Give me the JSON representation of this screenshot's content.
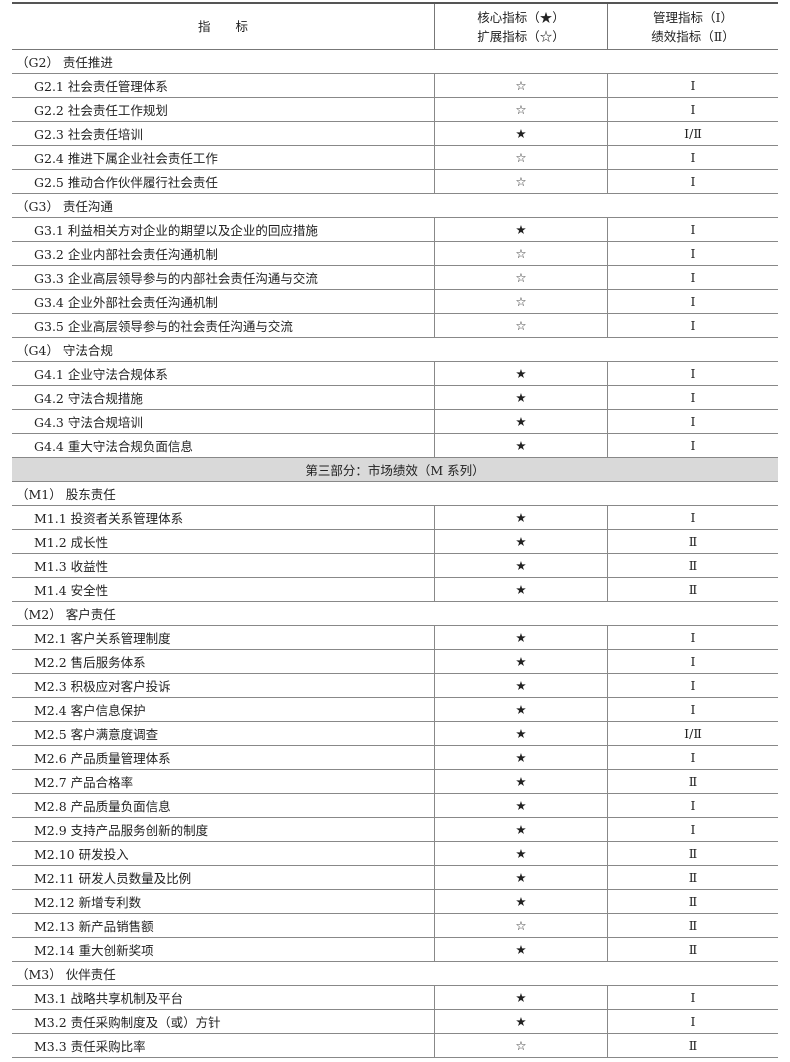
{
  "header": {
    "indicator": "指　　标",
    "core_line1": "核心指标（★）",
    "core_line2": "扩展指标（☆）",
    "type_line1": "管理指标（Ⅰ）",
    "type_line2": "绩效指标（Ⅱ）"
  },
  "rows": [
    {
      "kind": "group",
      "label": "（G2） 责任推进"
    },
    {
      "kind": "item",
      "label": "G2.1 社会责任管理体系",
      "core": "☆",
      "type": "Ⅰ"
    },
    {
      "kind": "item",
      "label": "G2.2 社会责任工作规划",
      "core": "☆",
      "type": "Ⅰ"
    },
    {
      "kind": "item",
      "label": "G2.3 社会责任培训",
      "core": "★",
      "type": "Ⅰ/Ⅱ"
    },
    {
      "kind": "item",
      "label": "G2.4 推进下属企业社会责任工作",
      "core": "☆",
      "type": "Ⅰ"
    },
    {
      "kind": "item",
      "label": "G2.5 推动合作伙伴履行社会责任",
      "core": "☆",
      "type": "Ⅰ"
    },
    {
      "kind": "group",
      "label": "（G3） 责任沟通"
    },
    {
      "kind": "item",
      "label": "G3.1 利益相关方对企业的期望以及企业的回应措施",
      "core": "★",
      "type": "Ⅰ"
    },
    {
      "kind": "item",
      "label": "G3.2 企业内部社会责任沟通机制",
      "core": "☆",
      "type": "Ⅰ"
    },
    {
      "kind": "item",
      "label": "G3.3 企业高层领导参与的内部社会责任沟通与交流",
      "core": "☆",
      "type": "Ⅰ"
    },
    {
      "kind": "item",
      "label": "G3.4 企业外部社会责任沟通机制",
      "core": "☆",
      "type": "Ⅰ"
    },
    {
      "kind": "item",
      "label": "G3.5 企业高层领导参与的社会责任沟通与交流",
      "core": "☆",
      "type": "Ⅰ"
    },
    {
      "kind": "group",
      "label": "（G4） 守法合规"
    },
    {
      "kind": "item",
      "label": "G4.1 企业守法合规体系",
      "core": "★",
      "type": "Ⅰ"
    },
    {
      "kind": "item",
      "label": "G4.2 守法合规措施",
      "core": "★",
      "type": "Ⅰ"
    },
    {
      "kind": "item",
      "label": "G4.3 守法合规培训",
      "core": "★",
      "type": "Ⅰ"
    },
    {
      "kind": "item",
      "label": "G4.4 重大守法合规负面信息",
      "core": "★",
      "type": "Ⅰ"
    },
    {
      "kind": "section",
      "label": "第三部分：市场绩效（M 系列）"
    },
    {
      "kind": "group",
      "label": "（M1） 股东责任"
    },
    {
      "kind": "item",
      "label": "M1.1 投资者关系管理体系",
      "core": "★",
      "type": "Ⅰ"
    },
    {
      "kind": "item",
      "label": "M1.2 成长性",
      "core": "★",
      "type": "Ⅱ"
    },
    {
      "kind": "item",
      "label": "M1.3 收益性",
      "core": "★",
      "type": "Ⅱ"
    },
    {
      "kind": "item",
      "label": "M1.4 安全性",
      "core": "★",
      "type": "Ⅱ"
    },
    {
      "kind": "group",
      "label": "（M2） 客户责任"
    },
    {
      "kind": "item",
      "label": "M2.1 客户关系管理制度",
      "core": "★",
      "type": "Ⅰ"
    },
    {
      "kind": "item",
      "label": "M2.2 售后服务体系",
      "core": "★",
      "type": "Ⅰ"
    },
    {
      "kind": "item",
      "label": "M2.3 积极应对客户投诉",
      "core": "★",
      "type": "Ⅰ"
    },
    {
      "kind": "item",
      "label": "M2.4 客户信息保护",
      "core": "★",
      "type": "Ⅰ"
    },
    {
      "kind": "item",
      "label": "M2.5 客户满意度调查",
      "core": "★",
      "type": "Ⅰ/Ⅱ"
    },
    {
      "kind": "item",
      "label": "M2.6 产品质量管理体系",
      "core": "★",
      "type": "Ⅰ"
    },
    {
      "kind": "item",
      "label": "M2.7 产品合格率",
      "core": "★",
      "type": "Ⅱ"
    },
    {
      "kind": "item",
      "label": "M2.8 产品质量负面信息",
      "core": "★",
      "type": "Ⅰ"
    },
    {
      "kind": "item",
      "label": "M2.9 支持产品服务创新的制度",
      "core": "★",
      "type": "Ⅰ"
    },
    {
      "kind": "item",
      "label": "M2.10 研发投入",
      "core": "★",
      "type": "Ⅱ"
    },
    {
      "kind": "item",
      "label": "M2.11 研发人员数量及比例",
      "core": "★",
      "type": "Ⅱ"
    },
    {
      "kind": "item",
      "label": "M2.12 新增专利数",
      "core": "★",
      "type": "Ⅱ"
    },
    {
      "kind": "item",
      "label": "M2.13 新产品销售额",
      "core": "☆",
      "type": "Ⅱ"
    },
    {
      "kind": "item",
      "label": "M2.14 重大创新奖项",
      "core": "★",
      "type": "Ⅱ"
    },
    {
      "kind": "group",
      "label": "（M3） 伙伴责任"
    },
    {
      "kind": "item",
      "label": "M3.1 战略共享机制及平台",
      "core": "★",
      "type": "Ⅰ"
    },
    {
      "kind": "item",
      "label": "M3.2 责任采购制度及（或）方针",
      "core": "★",
      "type": "Ⅰ"
    },
    {
      "kind": "item",
      "label": "M3.3 责任采购比率",
      "core": "☆",
      "type": "Ⅱ"
    }
  ]
}
